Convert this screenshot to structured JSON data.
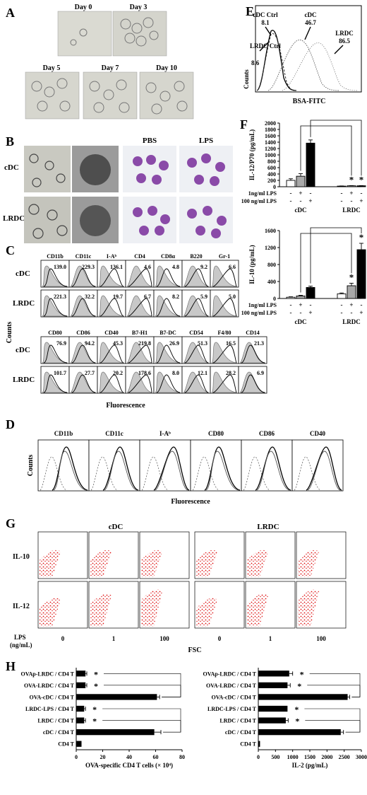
{
  "panels": {
    "A": {
      "label": "A",
      "days": [
        "Day 0",
        "Day 3",
        "Day 5",
        "Day 7",
        "Day 10"
      ]
    },
    "B": {
      "label": "B",
      "rows": [
        "cDC",
        "LRDC"
      ],
      "cols": [
        "PBS",
        "LPS"
      ]
    },
    "C": {
      "label": "C",
      "ylabel": "Counts",
      "xlabel": "Fluorescence",
      "rows": [
        "cDC",
        "LRDC",
        "cDC",
        "LRDC"
      ],
      "markers_top": [
        "CD11b",
        "CD11c",
        "I-Aᵇ",
        "CD4",
        "CD8α",
        "B220",
        "Gr-1"
      ],
      "values_top_cdc": [
        "139.0",
        "229.3",
        "136.1",
        "4.6",
        "4.8",
        "9.2",
        "6.6"
      ],
      "values_top_lrdc": [
        "221.3",
        "32.2",
        "19.7",
        "6.7",
        "8.2",
        "5.9",
        "5.0"
      ],
      "markers_bottom": [
        "CD80",
        "CD86",
        "CD40",
        "B7-H1",
        "B7-DC",
        "CD54",
        "F4/80",
        "CD14"
      ],
      "values_bottom_cdc": [
        "76.9",
        "94.2",
        "45.3",
        "219.8",
        "26.9",
        "51.3",
        "16.5",
        "21.3"
      ],
      "values_bottom_lrdc": [
        "101.7",
        "27.7",
        "20.2",
        "178.6",
        "8.0",
        "12.1",
        "28.2",
        "6.9"
      ]
    },
    "D": {
      "label": "D",
      "ylabel": "Counts",
      "xlabel": "Fluorescence",
      "markers": [
        "CD11b",
        "CD11c",
        "I-Aᵇ",
        "CD80",
        "CD86",
        "CD40"
      ]
    },
    "E": {
      "label": "E",
      "ylabel": "Counts",
      "xlabel": "BSA-FITC",
      "annotations": [
        {
          "name": "cDC Ctrl",
          "value": "8.1"
        },
        {
          "name": "LRDC Ctrl",
          "value": "8.6"
        },
        {
          "name": "cDC",
          "value": "46.7"
        },
        {
          "name": "LRDC",
          "value": "86.5"
        }
      ]
    },
    "G": {
      "label": "G",
      "groups": [
        "cDC",
        "LRDC"
      ],
      "rows": [
        "IL-10",
        "IL-12"
      ],
      "lps_label": "LPS",
      "lps_unit": "(ng/mL)",
      "lps_values": [
        "0",
        "1",
        "100",
        "0",
        "1",
        "100"
      ],
      "xlabel": "FSC"
    },
    "F": {
      "label": "F"
    },
    "H": {
      "label": "H"
    }
  },
  "chart_data": [
    {
      "id": "F-top",
      "type": "bar",
      "ylabel": "IL-12/P70 (pg/mL)",
      "ylim": [
        0,
        2000
      ],
      "yticks": [
        "0",
        "200",
        "400",
        "600",
        "800",
        "1000",
        "1200",
        "1400",
        "1600",
        "1800",
        "2000"
      ],
      "groups": [
        "cDC",
        "LRDC"
      ],
      "condition_labels": [
        "1ng/ml LPS",
        "100 ng/ml LPS"
      ],
      "condition_signs": [
        [
          "-",
          "+",
          "-",
          "-",
          "+",
          "-"
        ],
        [
          "-",
          "-",
          "+",
          "-",
          "-",
          "+"
        ]
      ],
      "series": [
        {
          "values": [
            200,
            20
          ]
        },
        {
          "values": [
            330,
            30
          ]
        },
        {
          "values": [
            1370,
            30
          ]
        }
      ],
      "errors": [
        [
          50,
          5
        ],
        [
          80,
          5
        ],
        [
          100,
          5
        ]
      ],
      "colors": [
        "#ffffff",
        "#a9a9a9",
        "#000000"
      ],
      "stars": [
        "",
        "",
        "",
        "",
        "*",
        "*"
      ]
    },
    {
      "id": "F-bottom",
      "type": "bar",
      "ylabel": "IL-10 (pg/mL)",
      "ylim": [
        0,
        1600
      ],
      "yticks": [
        "0",
        "400",
        "800",
        "1200",
        "1600"
      ],
      "groups": [
        "cDC",
        "LRDC"
      ],
      "condition_labels": [
        "1ng/ml LPS",
        "100 ng/ml LPS"
      ],
      "condition_signs": [
        [
          "-",
          "+",
          "-",
          "-",
          "+",
          "-"
        ],
        [
          "-",
          "-",
          "+",
          "-",
          "-",
          "+"
        ]
      ],
      "series": [
        {
          "values": [
            30,
            110
          ]
        },
        {
          "values": [
            60,
            300
          ]
        },
        {
          "values": [
            260,
            1150
          ]
        }
      ],
      "errors": [
        [
          10,
          20
        ],
        [
          15,
          60
        ],
        [
          30,
          150
        ]
      ],
      "colors": [
        "#ffffff",
        "#a9a9a9",
        "#000000"
      ],
      "stars": [
        "",
        "",
        "",
        "",
        "*",
        "*"
      ]
    },
    {
      "id": "H-left",
      "type": "bar",
      "orientation": "horizontal",
      "xlabel": "OVA-specific CD4 T cells (× 10⁴)",
      "xlim": [
        0,
        80
      ],
      "xticks": [
        "0",
        "20",
        "40",
        "60",
        "80"
      ],
      "categories": [
        "OVAp-LRDC / CD4 T",
        "OVA-LRDC / CD4 T",
        "OVA-cDC / CD4 T",
        "LRDC-LPS / CD4 T",
        "LRDC / CD4 T",
        "cDC / CD4 T",
        "CD4 T"
      ],
      "values": [
        7,
        7,
        61,
        6,
        6,
        59,
        4
      ],
      "errors": [
        1,
        1,
        2,
        1,
        1,
        5,
        0
      ],
      "stars": [
        "*",
        "*",
        "",
        "*",
        "*",
        "",
        ""
      ]
    },
    {
      "id": "H-right",
      "type": "bar",
      "orientation": "horizontal",
      "xlabel": "IL-2 (pg/mL)",
      "xlim": [
        0,
        3000
      ],
      "xticks": [
        "0",
        "500",
        "1000",
        "1500",
        "2000",
        "2500",
        "3000"
      ],
      "categories": [
        "OVAp-LRDC / CD4 T",
        "OVA-LRDC / CD4 T",
        "OVA-cDC / CD4 T",
        "LRDC-LPS / CD4 T",
        "LRDC / CD4 T",
        "cDC / CD4 T",
        "CD4 T"
      ],
      "values": [
        900,
        850,
        2600,
        850,
        800,
        2400,
        50
      ],
      "errors": [
        100,
        80,
        60,
        0,
        70,
        80,
        0
      ],
      "stars": [
        "*",
        "*",
        "",
        "*",
        "*",
        "",
        ""
      ]
    }
  ]
}
